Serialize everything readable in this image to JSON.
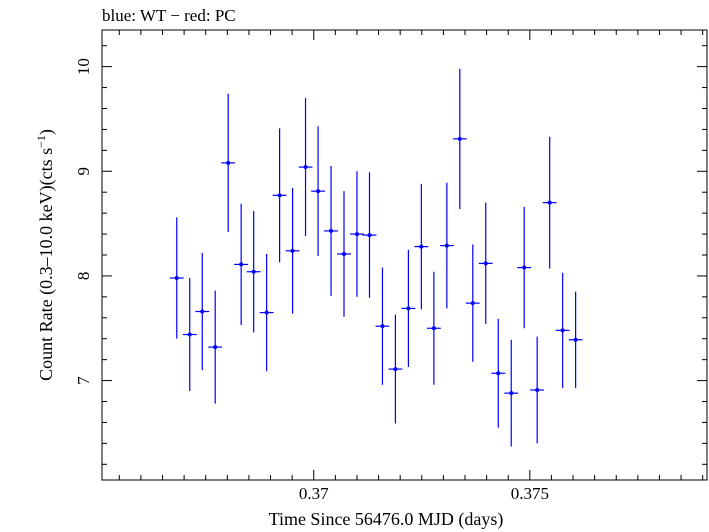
{
  "chart_data": {
    "type": "scatter",
    "title": "blue: WT − red: PC",
    "xlabel": "Time Since 56476.0 MJD (days)",
    "ylabel_main": "Count Rate (0.3–10.0 keV)(cts s",
    "ylabel_sup": "−1",
    "ylabel_close": ")",
    "xlim": [
      0.3651,
      0.3791
    ],
    "ylim": [
      6.05,
      10.35
    ],
    "x_ticks": [
      {
        "value": 0.37,
        "label": "0.37"
      },
      {
        "value": 0.375,
        "label": "0.375"
      }
    ],
    "y_ticks": [
      {
        "value": 7,
        "label": "7"
      },
      {
        "value": 8,
        "label": "8"
      },
      {
        "value": 9,
        "label": "9"
      },
      {
        "value": 10,
        "label": "10"
      }
    ],
    "grid": false,
    "series": [
      {
        "color": "#0000ff",
        "points": [
          {
            "x": 0.36683,
            "y": 7.98,
            "xerr": 0.00016,
            "yerr": 0.58
          },
          {
            "x": 0.36713,
            "y": 7.44,
            "xerr": 0.00016,
            "yerr": 0.54
          },
          {
            "x": 0.36742,
            "y": 7.66,
            "xerr": 0.00016,
            "yerr": 0.56
          },
          {
            "x": 0.36772,
            "y": 7.32,
            "xerr": 0.00016,
            "yerr": 0.54
          },
          {
            "x": 0.36802,
            "y": 9.08,
            "xerr": 0.00016,
            "yerr": 0.66
          },
          {
            "x": 0.36832,
            "y": 8.11,
            "xerr": 0.00016,
            "yerr": 0.58
          },
          {
            "x": 0.36861,
            "y": 8.04,
            "xerr": 0.00016,
            "yerr": 0.58
          },
          {
            "x": 0.36891,
            "y": 7.65,
            "xerr": 0.00016,
            "yerr": 0.56
          },
          {
            "x": 0.36921,
            "y": 8.77,
            "xerr": 0.00016,
            "yerr": 0.64
          },
          {
            "x": 0.36951,
            "y": 8.24,
            "xerr": 0.00016,
            "yerr": 0.6
          },
          {
            "x": 0.36981,
            "y": 9.04,
            "xerr": 0.00016,
            "yerr": 0.66
          },
          {
            "x": 0.3701,
            "y": 8.81,
            "xerr": 0.00016,
            "yerr": 0.62
          },
          {
            "x": 0.3704,
            "y": 8.43,
            "xerr": 0.00016,
            "yerr": 0.62
          },
          {
            "x": 0.3707,
            "y": 8.21,
            "xerr": 0.00016,
            "yerr": 0.6
          },
          {
            "x": 0.371,
            "y": 8.4,
            "xerr": 0.00016,
            "yerr": 0.6
          },
          {
            "x": 0.37129,
            "y": 8.39,
            "xerr": 0.00016,
            "yerr": 0.6
          },
          {
            "x": 0.37159,
            "y": 7.52,
            "xerr": 0.00016,
            "yerr": 0.56
          },
          {
            "x": 0.37189,
            "y": 7.11,
            "xerr": 0.00016,
            "yerr": 0.52
          },
          {
            "x": 0.37219,
            "y": 7.69,
            "xerr": 0.00016,
            "yerr": 0.56
          },
          {
            "x": 0.37249,
            "y": 8.28,
            "xerr": 0.00016,
            "yerr": 0.6
          },
          {
            "x": 0.37278,
            "y": 7.5,
            "xerr": 0.00016,
            "yerr": 0.54
          },
          {
            "x": 0.37308,
            "y": 8.29,
            "xerr": 0.00016,
            "yerr": 0.6
          },
          {
            "x": 0.37338,
            "y": 9.31,
            "xerr": 0.00016,
            "yerr": 0.67
          },
          {
            "x": 0.37368,
            "y": 7.74,
            "xerr": 0.00016,
            "yerr": 0.56
          },
          {
            "x": 0.37398,
            "y": 8.12,
            "xerr": 0.00016,
            "yerr": 0.58
          },
          {
            "x": 0.37427,
            "y": 7.07,
            "xerr": 0.00016,
            "yerr": 0.52
          },
          {
            "x": 0.37457,
            "y": 6.88,
            "xerr": 0.00016,
            "yerr": 0.51
          },
          {
            "x": 0.37487,
            "y": 8.08,
            "xerr": 0.00016,
            "yerr": 0.58
          },
          {
            "x": 0.37517,
            "y": 6.91,
            "xerr": 0.00016,
            "yerr": 0.51
          },
          {
            "x": 0.37546,
            "y": 8.7,
            "xerr": 0.00016,
            "yerr": 0.63
          },
          {
            "x": 0.37576,
            "y": 7.48,
            "xerr": 0.00016,
            "yerr": 0.55
          },
          {
            "x": 0.37606,
            "y": 7.39,
            "xerr": 0.00016,
            "yerr": 0.46
          }
        ]
      }
    ]
  }
}
